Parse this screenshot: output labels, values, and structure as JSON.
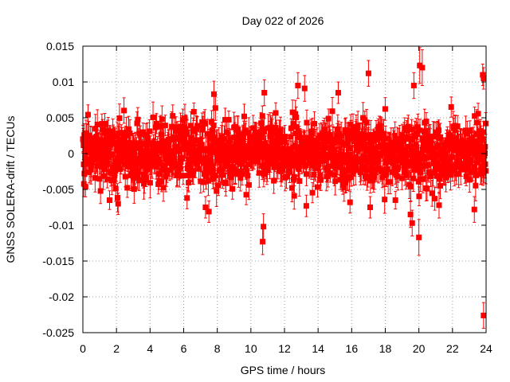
{
  "chart_data": {
    "type": "scatter",
    "title": "Day 022 of 2026",
    "xlabel": "GPS time / hours",
    "ylabel": "GNSS SOLERA-drift / TECUs",
    "xlim": [
      0,
      24
    ],
    "ylim": [
      -0.025,
      0.015
    ],
    "x_ticks": [
      0,
      2,
      4,
      6,
      8,
      10,
      12,
      14,
      16,
      18,
      20,
      22,
      24
    ],
    "x_tick_labels": [
      "0",
      "2",
      "4",
      "6",
      "8",
      "10",
      "12",
      "14",
      "16",
      "18",
      "20",
      "22",
      "24"
    ],
    "y_ticks": [
      -0.025,
      -0.02,
      -0.015,
      -0.01,
      -0.005,
      0,
      0.005,
      0.01,
      0.015
    ],
    "y_tick_labels": [
      "-0.025",
      "-0.02",
      "-0.015",
      "-0.01",
      "-0.005",
      "0",
      "0.005",
      "0.01",
      "0.015"
    ],
    "grid": true,
    "marker_color": "#ff0000",
    "errorbar_color": "#ff0000",
    "series": [
      {
        "name": "SOLERA-drift",
        "marker": "square",
        "dense_band": {
          "x_range": [
            0,
            24
          ],
          "mean": 0.0,
          "sigma": 0.0022,
          "typical_error": 0.0016,
          "approx_points": 1400
        },
        "points": [
          {
            "x": 0.05,
            "y": -0.0015,
            "err": 0.0015
          },
          {
            "x": 2.1,
            "y": -0.007,
            "err": 0.0015
          },
          {
            "x": 6.2,
            "y": -0.0062,
            "err": 0.0015
          },
          {
            "x": 7.3,
            "y": -0.0075,
            "err": 0.0015
          },
          {
            "x": 7.5,
            "y": -0.0081,
            "err": 0.0015
          },
          {
            "x": 7.8,
            "y": 0.0083,
            "err": 0.0018
          },
          {
            "x": 10.7,
            "y": -0.0123,
            "err": 0.0018
          },
          {
            "x": 10.75,
            "y": -0.0102,
            "err": 0.0018
          },
          {
            "x": 10.8,
            "y": 0.0085,
            "err": 0.0018
          },
          {
            "x": 12.8,
            "y": 0.0095,
            "err": 0.0018
          },
          {
            "x": 13.2,
            "y": 0.0091,
            "err": 0.0018
          },
          {
            "x": 13.3,
            "y": -0.0073,
            "err": 0.0015
          },
          {
            "x": 15.2,
            "y": 0.0085,
            "err": 0.0015
          },
          {
            "x": 15.9,
            "y": -0.0068,
            "err": 0.0015
          },
          {
            "x": 17.0,
            "y": 0.0112,
            "err": 0.0018
          },
          {
            "x": 17.1,
            "y": -0.0075,
            "err": 0.0015
          },
          {
            "x": 19.5,
            "y": -0.0085,
            "err": 0.0018
          },
          {
            "x": 19.6,
            "y": -0.0097,
            "err": 0.0018
          },
          {
            "x": 19.7,
            "y": 0.0095,
            "err": 0.0018
          },
          {
            "x": 20.0,
            "y": -0.0117,
            "err": 0.0025
          },
          {
            "x": 20.05,
            "y": 0.0123,
            "err": 0.0025
          },
          {
            "x": 20.2,
            "y": 0.012,
            "err": 0.0025
          },
          {
            "x": 21.2,
            "y": -0.0072,
            "err": 0.0018
          },
          {
            "x": 23.3,
            "y": -0.0078,
            "err": 0.0018
          },
          {
            "x": 23.8,
            "y": 0.011,
            "err": 0.0015
          },
          {
            "x": 23.85,
            "y": 0.0105,
            "err": 0.0015
          },
          {
            "x": 23.85,
            "y": -0.0226,
            "err": 0.0018
          }
        ]
      }
    ]
  }
}
